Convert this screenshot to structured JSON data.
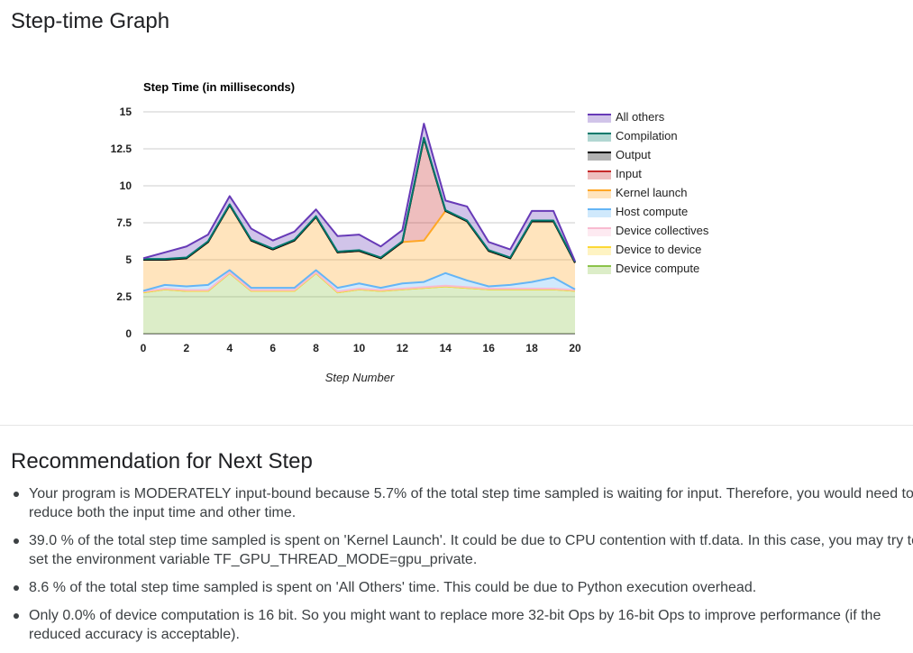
{
  "page": {
    "graph_title": "Step-time Graph",
    "recommendation_title": "Recommendation for Next Step"
  },
  "recommendations": [
    "Your program is MODERATELY input-bound because 5.7% of the total step time sampled is waiting for input. Therefore, you would need to reduce both the input time and other time.",
    "39.0 % of the total step time sampled is spent on 'Kernel Launch'. It could be due to CPU contention with tf.data. In this case, you may try to set the environment variable TF_GPU_THREAD_MODE=gpu_private.",
    "8.6 % of the total step time sampled is spent on 'All Others' time. This could be due to Python execution overhead.",
    "Only 0.0% of device computation is 16 bit. So you might want to replace more 32-bit Ops by 16-bit Ops to improve performance (if the reduced accuracy is acceptable)."
  ],
  "chart_data": {
    "type": "area",
    "stacked": true,
    "title": "Step Time (in milliseconds)",
    "xlabel": "Step Number",
    "ylabel": "",
    "xlim": [
      0,
      20
    ],
    "ylim": [
      0,
      15
    ],
    "x_ticks": [
      "0",
      "2",
      "4",
      "6",
      "8",
      "10",
      "12",
      "14",
      "16",
      "18",
      "20"
    ],
    "y_ticks": [
      "0",
      "2.5",
      "5",
      "7.5",
      "10",
      "12.5",
      "15"
    ],
    "grid": true,
    "legend_position": "right",
    "x": [
      0,
      1,
      2,
      3,
      4,
      5,
      6,
      7,
      8,
      9,
      10,
      11,
      12,
      13,
      14,
      15,
      16,
      17,
      18,
      19,
      20
    ],
    "series": [
      {
        "name": "Device compute",
        "color": "#8bc34a",
        "values": [
          2.8,
          3.0,
          2.9,
          2.9,
          4.1,
          2.9,
          2.9,
          2.9,
          4.1,
          2.8,
          3.0,
          2.9,
          3.0,
          3.1,
          3.2,
          3.1,
          3.0,
          3.0,
          3.0,
          3.0,
          2.9
        ]
      },
      {
        "name": "Device to device",
        "color": "#fdd835",
        "values": [
          0,
          0,
          0,
          0,
          0,
          0,
          0,
          0,
          0,
          0,
          0,
          0,
          0,
          0,
          0,
          0,
          0,
          0,
          0,
          0,
          0
        ]
      },
      {
        "name": "Device collectives",
        "color": "#f8bbd0",
        "values": [
          0.05,
          0.05,
          0.05,
          0.05,
          0.05,
          0.05,
          0.05,
          0.05,
          0.05,
          0.05,
          0.05,
          0.05,
          0.05,
          0.05,
          0.05,
          0.05,
          0.05,
          0.05,
          0.05,
          0.05,
          0.05
        ]
      },
      {
        "name": "Host compute",
        "color": "#64b5f6",
        "values": [
          0.05,
          0.25,
          0.25,
          0.35,
          0.15,
          0.15,
          0.15,
          0.15,
          0.15,
          0.25,
          0.35,
          0.15,
          0.35,
          0.35,
          0.85,
          0.45,
          0.15,
          0.25,
          0.45,
          0.75,
          0.05
        ]
      },
      {
        "name": "Kernel launch",
        "color": "#ffa726",
        "values": [
          2.1,
          1.7,
          1.9,
          2.9,
          4.4,
          3.2,
          2.6,
          3.2,
          3.6,
          2.4,
          2.2,
          2.0,
          2.8,
          2.8,
          4.2,
          4.0,
          2.4,
          1.8,
          4.1,
          3.8,
          1.8
        ]
      },
      {
        "name": "Input",
        "color": "#c62828",
        "values": [
          0,
          0,
          0,
          0,
          0,
          0,
          0,
          0,
          0,
          0,
          0,
          0,
          0,
          6.9,
          0,
          0,
          0,
          0,
          0,
          0,
          0
        ]
      },
      {
        "name": "Output",
        "color": "#000000",
        "values": [
          0,
          0,
          0,
          0,
          0,
          0,
          0,
          0,
          0,
          0,
          0,
          0,
          0,
          0,
          0,
          0,
          0,
          0,
          0,
          0,
          0
        ]
      },
      {
        "name": "Compilation",
        "color": "#00796b",
        "values": [
          0.05,
          0.05,
          0.05,
          0.05,
          0.05,
          0.05,
          0.05,
          0.05,
          0.05,
          0.05,
          0.05,
          0.05,
          0.05,
          0.05,
          0.05,
          0.05,
          0.05,
          0.05,
          0.05,
          0.05,
          0.05
        ]
      },
      {
        "name": "All others",
        "color": "#673ab7",
        "values": [
          0.05,
          0.45,
          0.75,
          0.45,
          0.55,
          0.75,
          0.55,
          0.55,
          0.45,
          1.05,
          1.05,
          0.75,
          0.75,
          0.95,
          0.65,
          0.95,
          0.55,
          0.55,
          0.65,
          0.65,
          0.05
        ]
      }
    ]
  }
}
